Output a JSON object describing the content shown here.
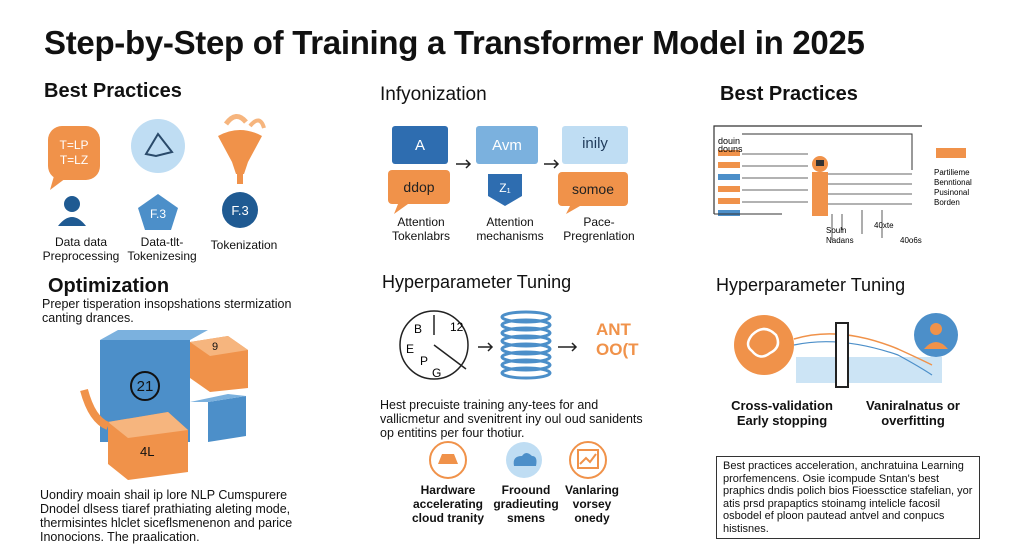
{
  "title": "Step-by-Step of Training a Transformer Model in 2025",
  "col1": {
    "best_practices": {
      "heading": "Best Practices",
      "bubble_text": [
        "T=LP",
        "T=LZ"
      ],
      "f3_text": "F.3",
      "f3b_text": "F.3",
      "captions": [
        "Data data Preprocessing",
        "Data-tlt- Tokenizesing",
        "Tokenization"
      ]
    },
    "optimization": {
      "heading": "Optimization",
      "text": "Preper tisperation insopshations stermization canting drances.",
      "cube_labels": [
        "21",
        "9",
        "4L"
      ],
      "bottom_text": "Uondiry moain shail ip lore NLP Cumspurere Dnodel dlsess tiaref prathiating aleting mode, thermisintes hlclet siceflsmenenon and parice Inonocions. The praalication."
    }
  },
  "col2": {
    "infyonization": {
      "heading": "Infyonization",
      "tiles": [
        "A",
        "Avm",
        "inily"
      ],
      "lower": [
        "ddop",
        "Z₁",
        "somoe"
      ],
      "captions": [
        "Attention Tokenlabrs",
        "Attention mechanisms",
        "Pace-Pregrenlation"
      ]
    },
    "hyperparameter": {
      "heading": "Hyperparameter Tuning",
      "clock_labels": [
        "12",
        "B",
        "E",
        "P",
        "G"
      ],
      "arrow_text": [
        "ANT",
        "OO(T"
      ],
      "text": "Hest precuiste training any-tees for and vallicmetur and svenitrent iny oul oud sanidents op entitins per four thotiur.",
      "icon_captions": [
        "Hardware accelerating cloud tranity",
        "Froound gradieuting smens",
        "Vanlaring vorsey onedy"
      ]
    }
  },
  "col3": {
    "best_practices": {
      "heading": "Best Practices",
      "left_labels": [
        "douin",
        "douns"
      ],
      "right_labels": [
        "Partilieme",
        "Benntional",
        "Pusinonal",
        "Borden"
      ],
      "bottom_labels": [
        "Souln",
        "Nadans",
        "40xte",
        "40o6s"
      ]
    },
    "hyperparameter": {
      "heading": "Hyperparameter Tuning",
      "captions": [
        "Cross-validation Early stopping",
        "Vaniralnatus or overfitting"
      ],
      "box_text": "Best practices acceleration, anchratuina Learning prorfemencens. Osie icompude Sntan's best praphics dndis polich bios Fioessctice stafelian, yor atis prsd prapaptics stoinamg intelicle facosil osbodel ef ploon pautead antvel and conpucs histisnes."
    }
  },
  "colors": {
    "orange": "#F0924A",
    "blue": "#4C8FC9",
    "light_blue": "#BFDDF3",
    "dark_blue": "#1F5A92"
  }
}
